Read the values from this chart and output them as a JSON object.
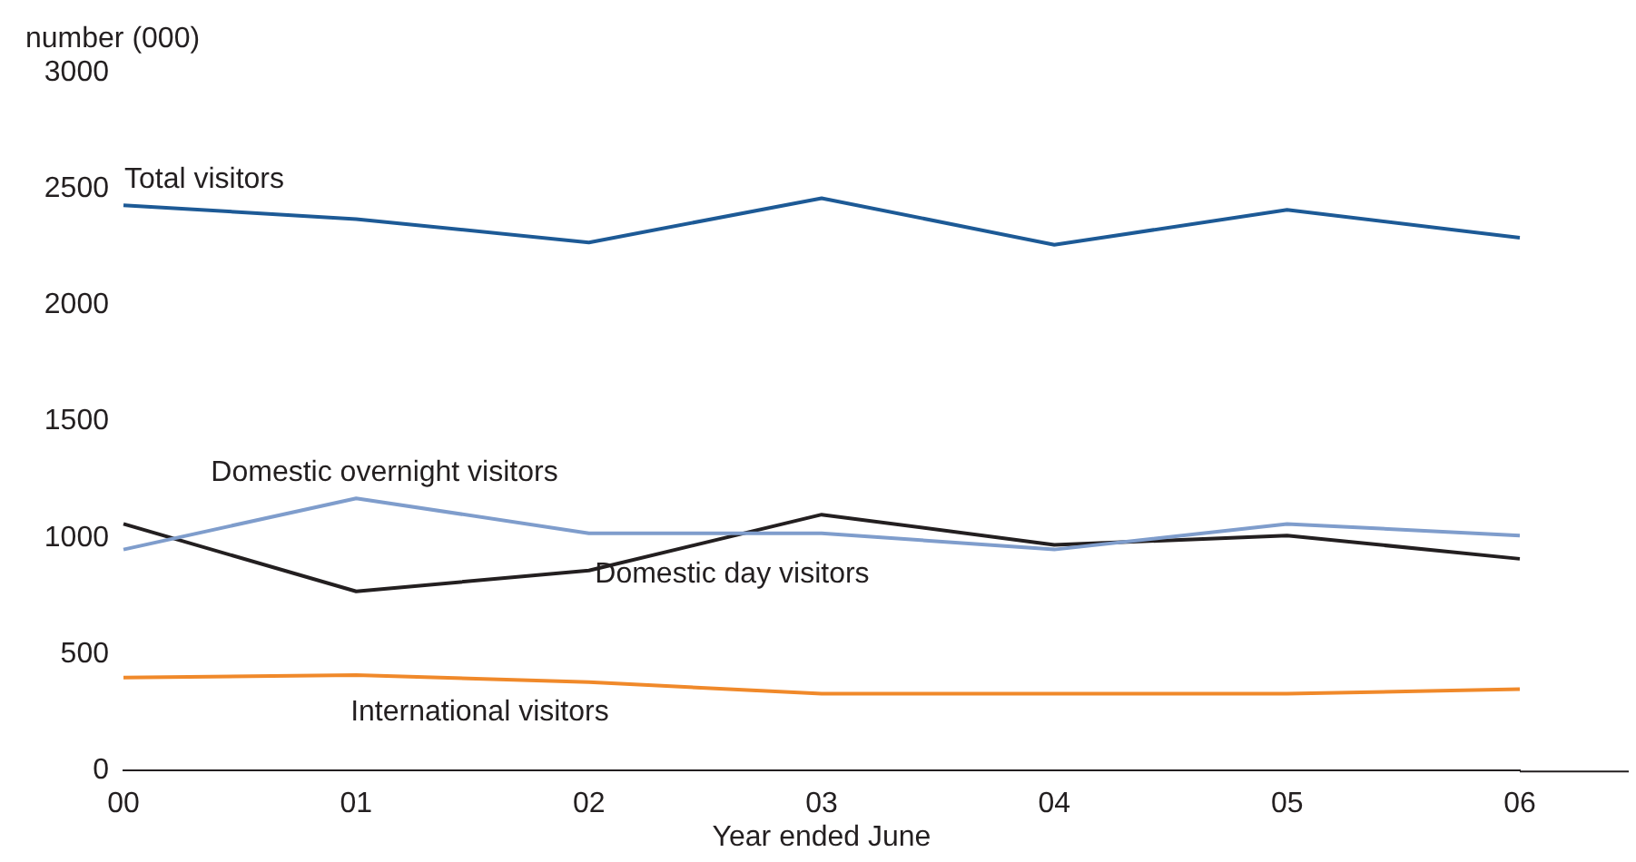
{
  "chart_data": {
    "type": "line",
    "ylabel": "number (000)",
    "xlabel": "Year ended June",
    "categories": [
      "00",
      "01",
      "02",
      "03",
      "04",
      "05",
      "06"
    ],
    "ylim": [
      0,
      3000
    ],
    "yticks": [
      0,
      500,
      1000,
      1500,
      2000,
      2500,
      3000
    ],
    "grid": false,
    "legend": false,
    "marker": "none",
    "line_style": "solid",
    "series": [
      {
        "name": "Total visitors",
        "color": "#1d5a96",
        "values": [
          2430,
          2370,
          2270,
          2460,
          2260,
          2410,
          2290
        ]
      },
      {
        "name": "Domestic overnight visitors",
        "color": "#7f9dcc",
        "values": [
          950,
          1170,
          1020,
          1020,
          950,
          1060,
          1010
        ]
      },
      {
        "name": "Domestic day visitors",
        "color": "#231f20",
        "values": [
          1060,
          770,
          860,
          1100,
          970,
          1010,
          910
        ]
      },
      {
        "name": "International visitors",
        "color": "#f0892a",
        "values": [
          400,
          410,
          380,
          330,
          330,
          330,
          350
        ]
      }
    ]
  }
}
